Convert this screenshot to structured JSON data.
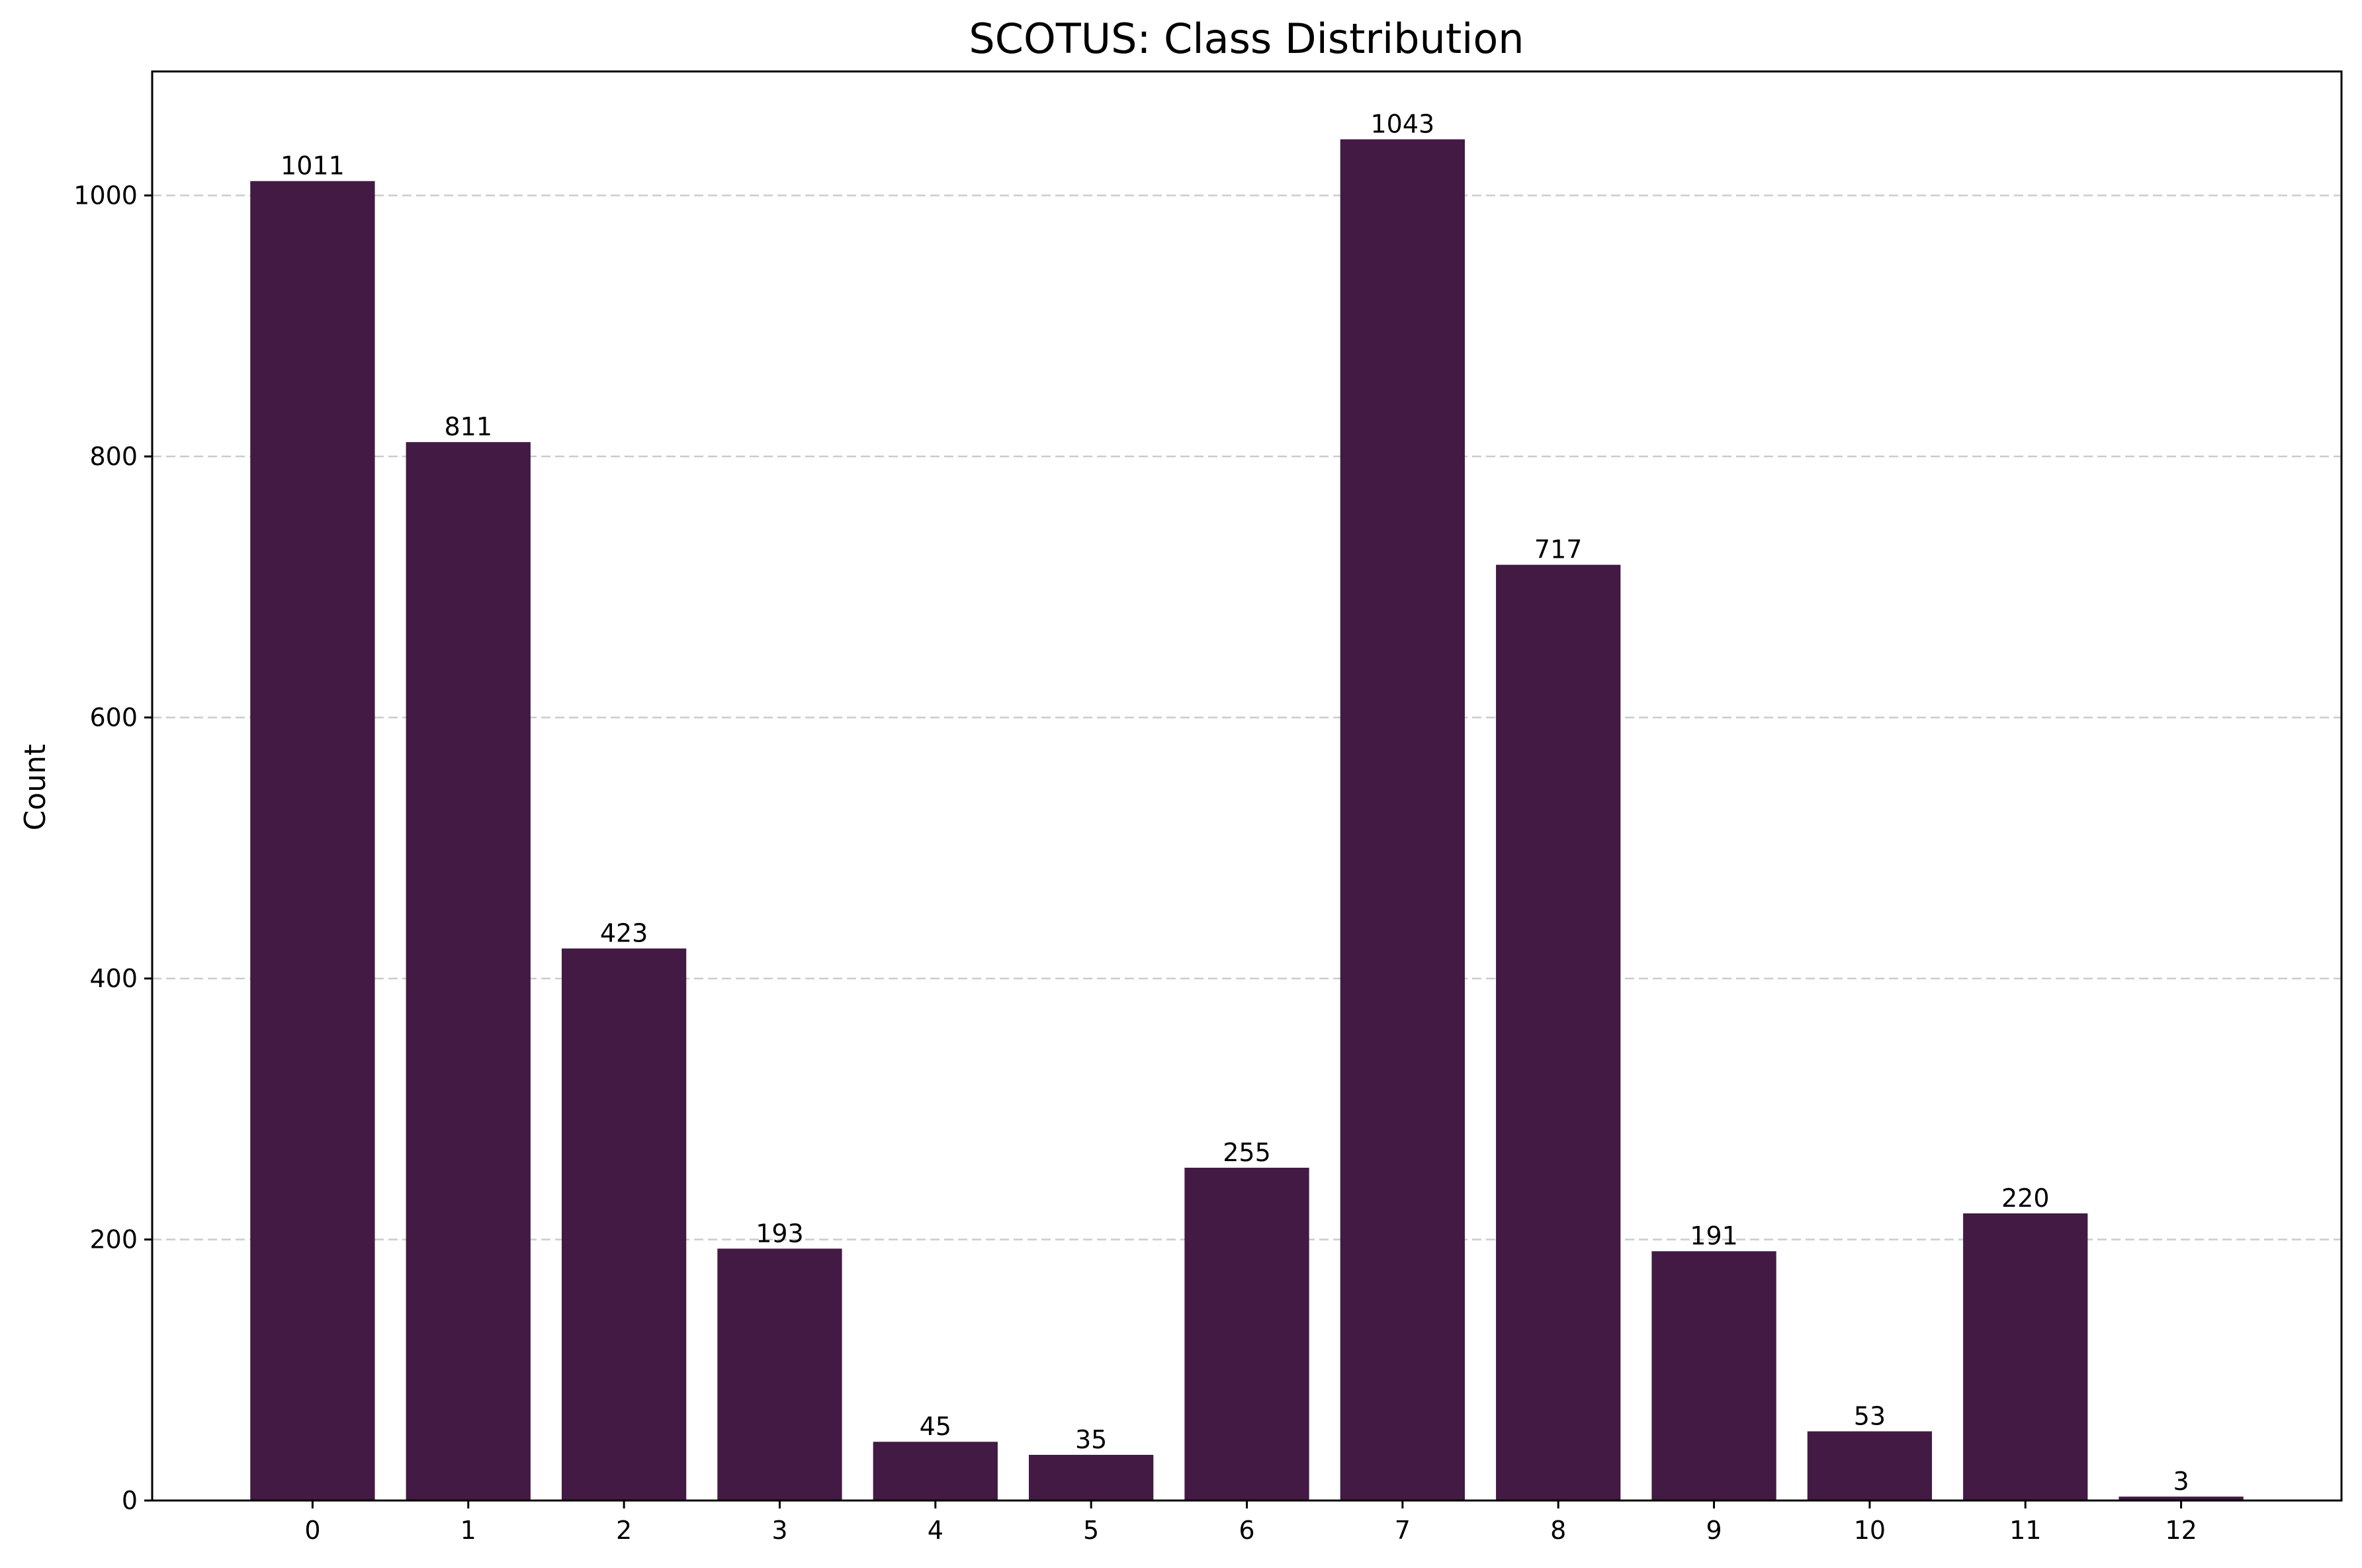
{
  "chart_data": {
    "type": "bar",
    "title": "SCOTUS: Class Distribution",
    "xlabel": "",
    "ylabel": "Count",
    "categories": [
      "0",
      "1",
      "2",
      "3",
      "4",
      "5",
      "6",
      "7",
      "8",
      "9",
      "10",
      "11",
      "12"
    ],
    "values": [
      1011,
      811,
      423,
      193,
      45,
      35,
      255,
      1043,
      717,
      191,
      53,
      220,
      3
    ],
    "data_labels": [
      "1011",
      "811",
      "423",
      "193",
      "45",
      "35",
      "255",
      "1043",
      "717",
      "191",
      "53",
      "220",
      "3"
    ],
    "yticks": [
      0,
      200,
      400,
      600,
      800,
      1000
    ],
    "ytick_labels": [
      "0",
      "200",
      "400",
      "600",
      "800",
      "1000"
    ],
    "ylim": [
      0,
      1095
    ],
    "grid": "y-axis, dashed",
    "legend": "none",
    "bar_color": "#421a43"
  }
}
